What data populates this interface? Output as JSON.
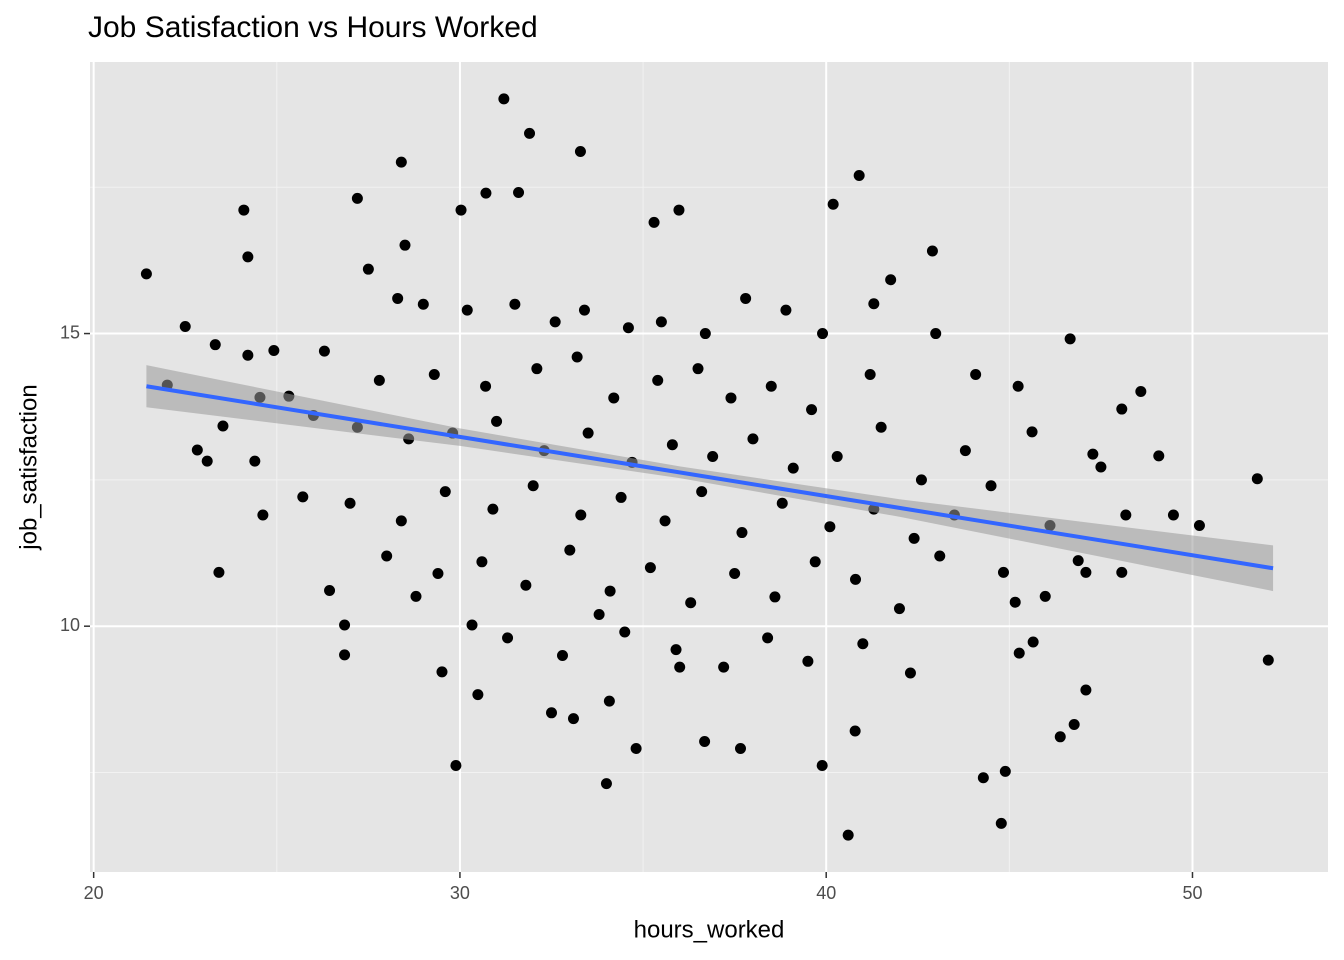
{
  "chart_data": {
    "type": "scatter",
    "title": "Job Satisfaction vs Hours Worked",
    "x_label": "hours_worked",
    "y_label": "job_satisfaction",
    "xlim": [
      19.9,
      53.7
    ],
    "ylim": [
      5.8,
      19.64
    ],
    "xticks": [
      20,
      30,
      40,
      50
    ],
    "yticks": [
      10,
      15
    ],
    "x_minor_ticks": [
      25,
      35,
      45
    ],
    "y_minor_ticks": [
      7.5,
      12.5,
      17.5
    ],
    "grid": true,
    "color": "#000000",
    "x": [
      21.44,
      22.01,
      22.5,
      22.83,
      23.1,
      23.32,
      23.42,
      23.53,
      24.1,
      24.21,
      24.21,
      24.4,
      24.62,
      24.54,
      24.92,
      25.33,
      25.71,
      26.44,
      26.85,
      26.85,
      27.2,
      28.4,
      28.5,
      28.8,
      29.51,
      29.89,
      30.03,
      30.49,
      30.33,
      30.71,
      31.2,
      31.9,
      31.6,
      33.29,
      32.5,
      33.1,
      34.0,
      34.08,
      34.81,
      35.3,
      35.98,
      36.68,
      37.66,
      39.89,
      40.6,
      40.9,
      40.19,
      40.79,
      41.3,
      41.76,
      42.9,
      42.99,
      44.08,
      44.29,
      44.78,
      44.89,
      45.24,
      45.62,
      45.98,
      46.11,
      46.39,
      46.66,
      46.77,
      47.09,
      47.28,
      47.5,
      47.09,
      46.88,
      48.07,
      48.18,
      48.07,
      48.59,
      49.08,
      49.48,
      50.19,
      51.77,
      52.07,
      45.16,
      44.84,
      45.27,
      45.65,
      27.5,
      28.3,
      29.0,
      30.2,
      31.5,
      32.6,
      33.4,
      34.6,
      35.5,
      36.7,
      37.8,
      38.9,
      39.9,
      26.3,
      27.8,
      29.3,
      30.7,
      32.1,
      33.2,
      34.2,
      35.4,
      36.5,
      37.4,
      38.5,
      39.6,
      41.2,
      26.0,
      27.2,
      28.6,
      29.8,
      31.0,
      32.3,
      33.5,
      34.7,
      35.8,
      36.9,
      38.0,
      39.1,
      40.3,
      41.5,
      42.6,
      43.8,
      44.5,
      27.0,
      28.4,
      29.6,
      30.9,
      32.0,
      33.3,
      34.4,
      35.6,
      36.6,
      37.7,
      38.8,
      40.1,
      41.3,
      42.4,
      43.5,
      28.0,
      29.4,
      30.6,
      31.8,
      33.0,
      34.1,
      35.2,
      36.3,
      37.5,
      38.6,
      39.7,
      40.8,
      42.0,
      43.1,
      31.3,
      32.8,
      34.5,
      35.9,
      37.2,
      38.4,
      39.5,
      41.0,
      42.3,
      36.0,
      33.8
    ],
    "values": [
      16.02,
      14.12,
      15.12,
      13.01,
      12.82,
      14.81,
      10.92,
      13.42,
      17.11,
      16.31,
      14.63,
      12.82,
      11.9,
      13.91,
      14.71,
      13.93,
      12.21,
      10.61,
      9.51,
      10.02,
      17.31,
      17.93,
      16.51,
      10.51,
      9.22,
      7.62,
      17.11,
      8.83,
      10.02,
      17.4,
      19.01,
      18.42,
      17.41,
      18.11,
      8.52,
      8.42,
      7.31,
      8.72,
      7.91,
      16.9,
      17.11,
      8.03,
      7.91,
      7.62,
      6.43,
      17.7,
      17.21,
      8.21,
      15.51,
      15.92,
      16.41,
      15.0,
      14.3,
      7.41,
      6.63,
      7.52,
      14.1,
      13.32,
      10.51,
      11.72,
      8.11,
      14.91,
      8.32,
      8.91,
      12.94,
      12.72,
      10.92,
      11.12,
      13.71,
      11.9,
      10.92,
      14.01,
      12.91,
      11.9,
      11.72,
      12.52,
      9.42,
      10.41,
      10.92,
      9.54,
      9.73,
      16.1,
      15.6,
      15.5,
      15.4,
      15.5,
      15.2,
      15.4,
      15.1,
      15.2,
      15.0,
      15.6,
      15.4,
      15.0,
      14.7,
      14.2,
      14.3,
      14.1,
      14.4,
      14.6,
      13.9,
      14.2,
      14.4,
      13.9,
      14.1,
      13.7,
      14.3,
      13.6,
      13.4,
      13.2,
      13.3,
      13.5,
      13.0,
      13.3,
      12.8,
      13.1,
      12.9,
      13.2,
      12.7,
      12.9,
      13.4,
      12.5,
      13.0,
      12.4,
      12.1,
      11.8,
      12.3,
      12.0,
      12.4,
      11.9,
      12.2,
      11.8,
      12.3,
      11.6,
      12.1,
      11.7,
      12.0,
      11.5,
      11.9,
      11.2,
      10.9,
      11.1,
      10.7,
      11.3,
      10.6,
      11.0,
      10.4,
      10.9,
      10.5,
      11.1,
      10.8,
      10.3,
      11.2,
      9.8,
      9.5,
      9.9,
      9.6,
      9.3,
      9.8,
      9.4,
      9.7,
      9.2,
      9.3,
      10.2
    ],
    "fit": {
      "color": "#3366ff",
      "x": [
        21.44,
        52.2
      ],
      "y": [
        14.1,
        10.99
      ]
    },
    "band": {
      "color": "#999999",
      "x": [
        21.44,
        30,
        36,
        42,
        52.2
      ],
      "lower": [
        13.74,
        13.08,
        12.53,
        11.87,
        10.6
      ],
      "upper": [
        14.46,
        13.38,
        12.73,
        12.17,
        11.38
      ]
    }
  }
}
